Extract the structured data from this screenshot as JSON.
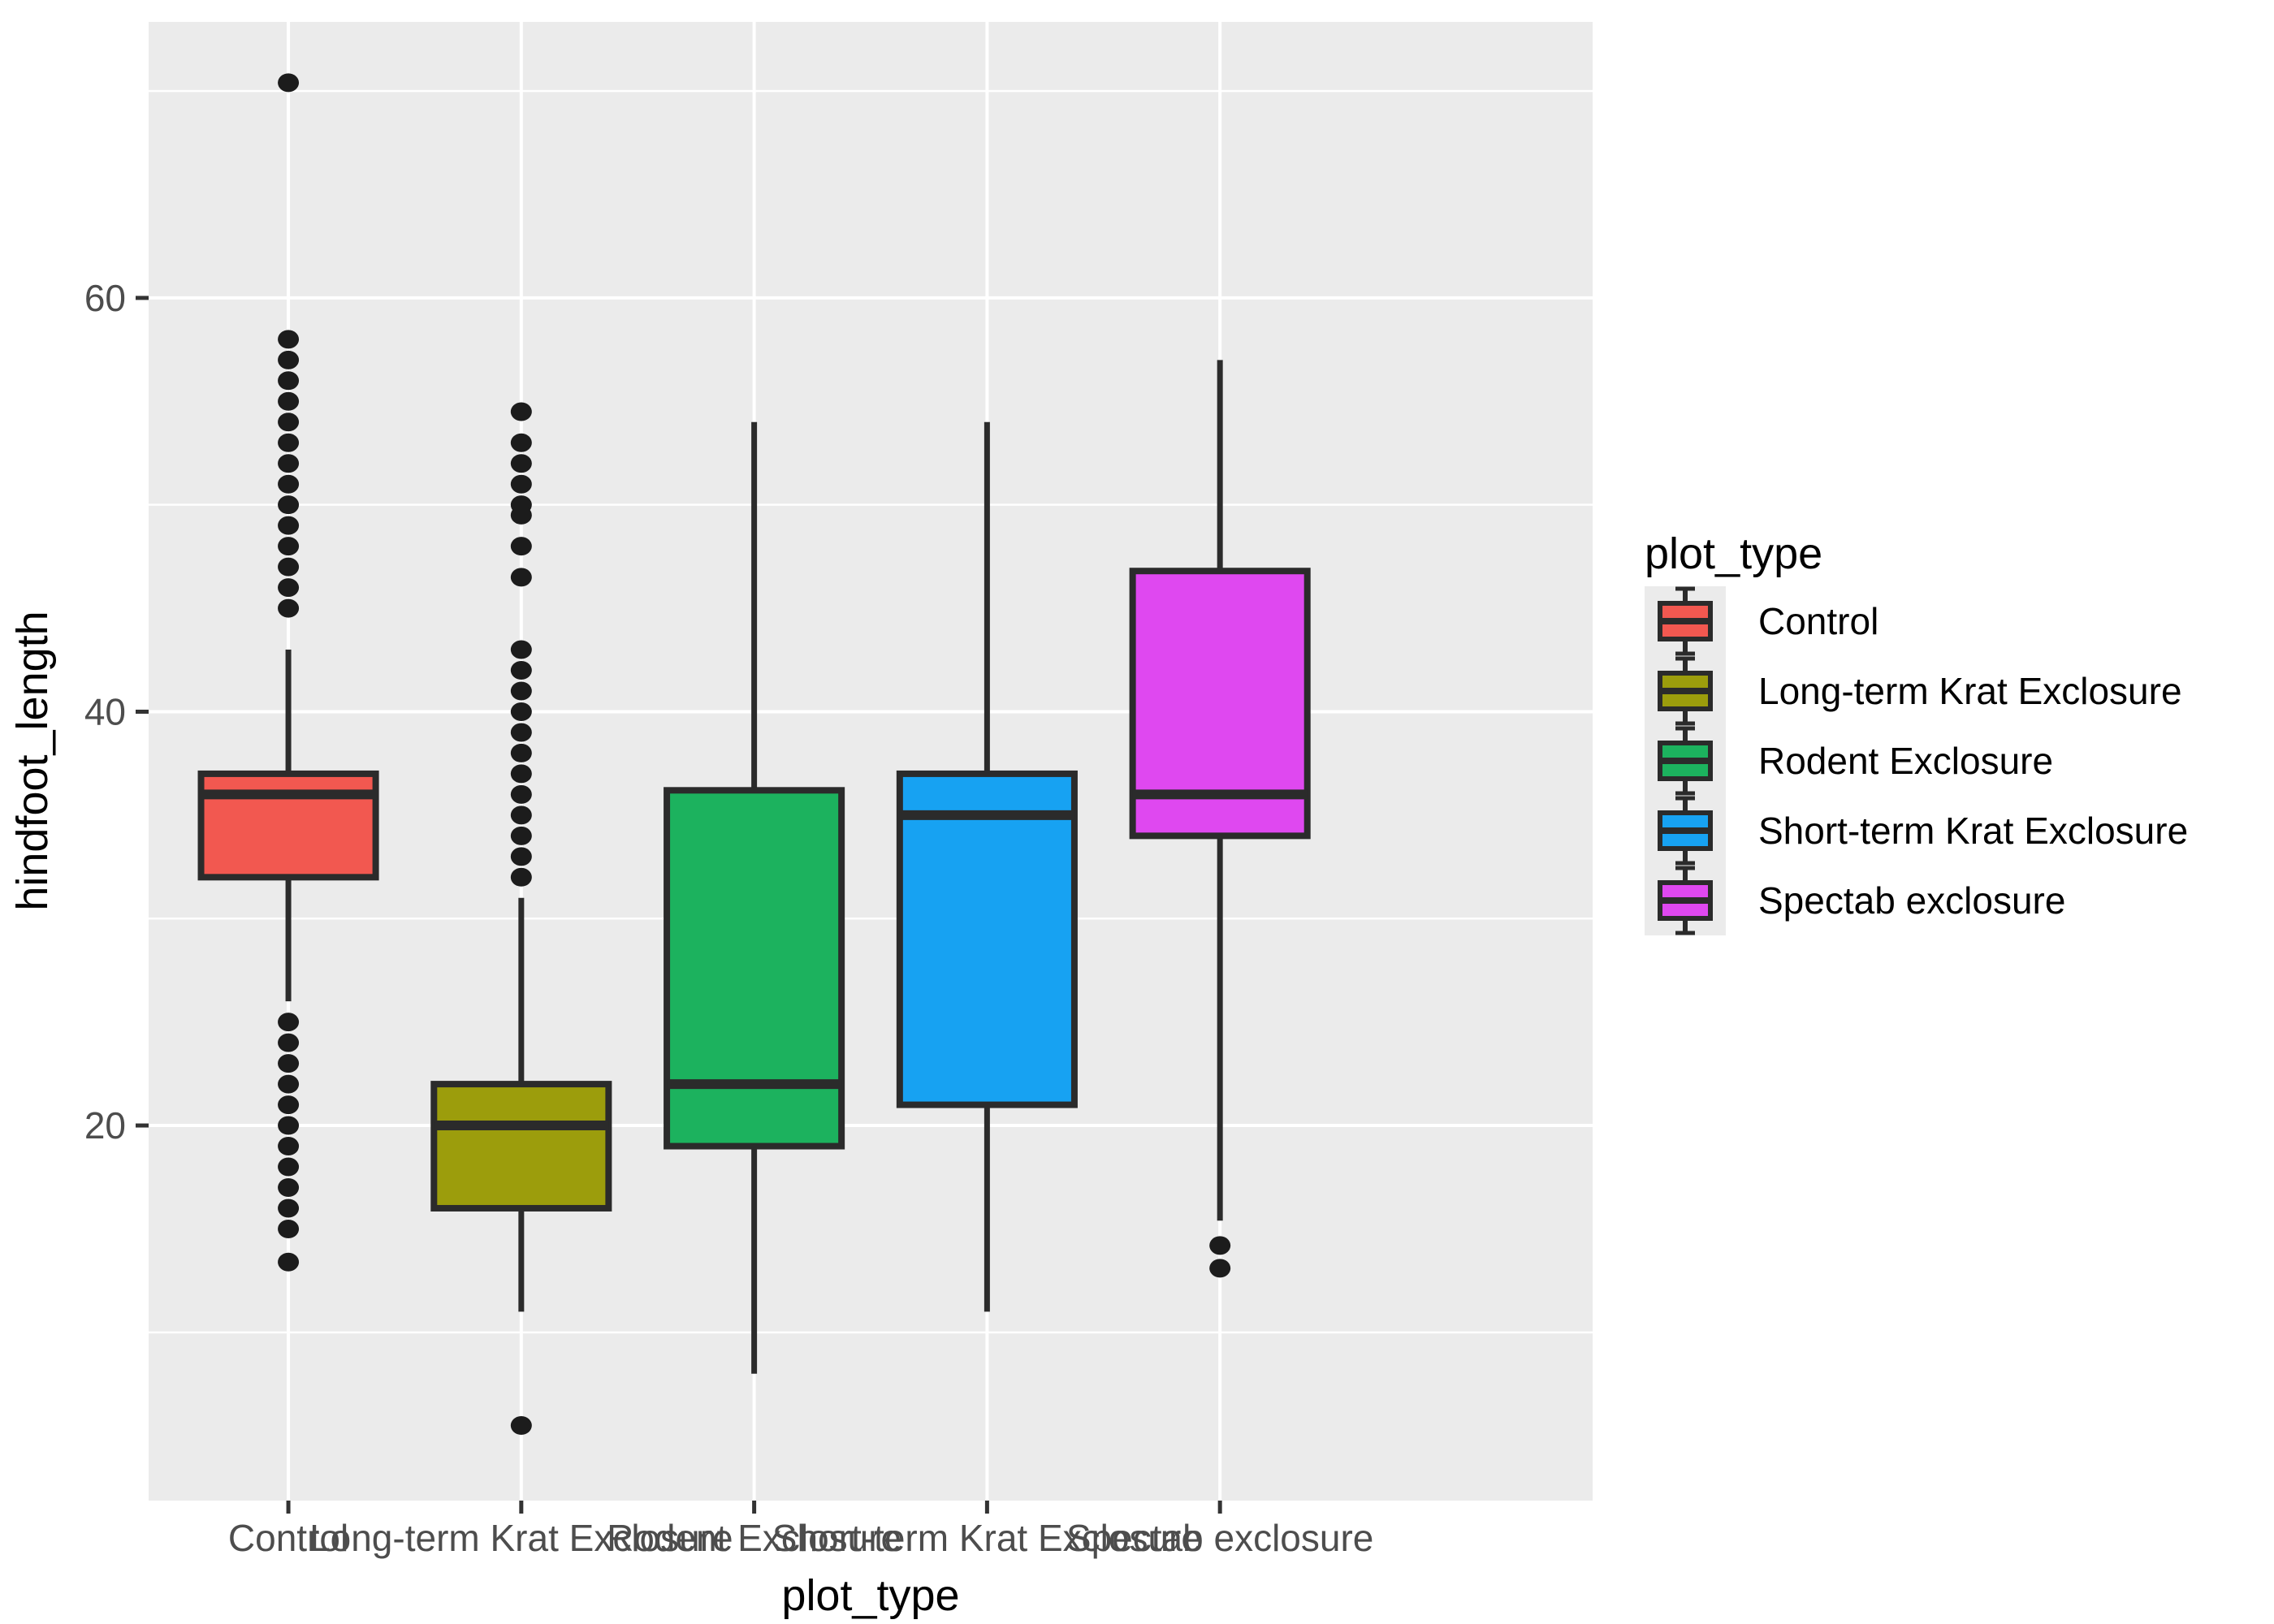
{
  "figure": {
    "background": "#FFFFFF",
    "panel_background": "#EBEBEB",
    "gridline_color": "#FFFFFF",
    "tick_label_color": "#4D4D4D",
    "tick_mark_color": "#333333",
    "axis_title_color": "#000000",
    "box_outline_color": "#2B2B2B",
    "outlier_color": "#1C1C1C",
    "legend_key_background": "#EBEBEB"
  },
  "chart_data": {
    "type": "boxplot",
    "title": "",
    "xlabel": "plot_type",
    "ylabel": "hindfoot_length",
    "ylim": [
      1.87,
      73.34
    ],
    "y_major_ticks": [
      20,
      40,
      60
    ],
    "y_minor_gridlines": [
      10,
      30,
      50,
      70
    ],
    "grid": "major+minor horizontal white on gray, vertical major at each category",
    "legend": {
      "title": "plot_type",
      "position": "right"
    },
    "categories": [
      "Control",
      "Long-term Krat Exclosure",
      "Rodent Exclosure",
      "Short-term Krat Exclosure",
      "Spectab exclosure"
    ],
    "series": [
      {
        "label": "Control",
        "color": "#F25850",
        "q1": 32,
        "median": 36,
        "q3": 37,
        "whisker_low": 26,
        "whisker_high": 43,
        "outliers_high": [
          45,
          46,
          47,
          48,
          49,
          50,
          51,
          52,
          53,
          54,
          55,
          56,
          57,
          58,
          70.4
        ],
        "outliers_low": [
          25,
          24,
          23,
          22,
          21,
          20,
          19,
          18,
          17,
          16,
          15,
          13.4
        ]
      },
      {
        "label": "Long-term Krat Exclosure",
        "color": "#9C9D0C",
        "q1": 16,
        "median": 20,
        "q3": 22,
        "whisker_low": 11,
        "whisker_high": 31,
        "outliers_high": [
          54.5,
          53,
          52,
          51,
          50,
          49.5,
          48,
          46.5,
          43,
          42,
          41,
          40,
          39,
          38,
          37,
          36,
          35,
          34,
          33,
          32
        ],
        "outliers_low": [
          5.5
        ]
      },
      {
        "label": "Rodent Exclosure",
        "color": "#1CB25E",
        "q1": 19,
        "median": 22,
        "q3": 36.2,
        "whisker_low": 8,
        "whisker_high": 54,
        "outliers_high": [],
        "outliers_low": []
      },
      {
        "label": "Short-term Krat Exclosure",
        "color": "#17A2F2",
        "q1": 21,
        "median": 35,
        "q3": 37,
        "whisker_low": 11,
        "whisker_high": 54,
        "outliers_high": [],
        "outliers_low": []
      },
      {
        "label": "Spectab exclosure",
        "color": "#DF48F0",
        "q1": 34,
        "median": 36,
        "q3": 46.8,
        "whisker_low": 15.4,
        "whisker_high": 57,
        "outliers_high": [],
        "outliers_low": [
          14.2,
          13.1
        ]
      }
    ]
  }
}
